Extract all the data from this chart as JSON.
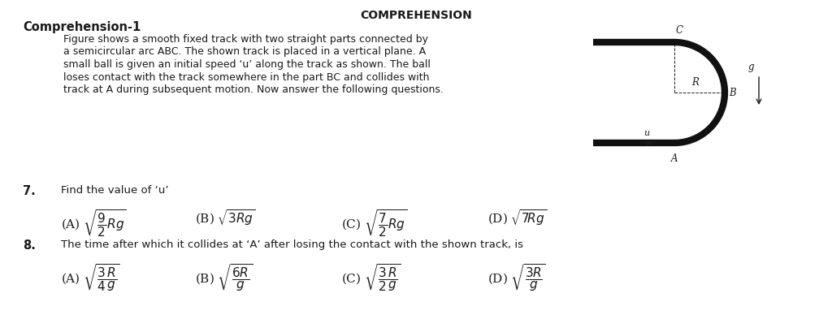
{
  "title": "COMPREHENSION",
  "heading": "Comprehension-1",
  "para_lines": [
    "Figure shows a smooth fixed track with two straight parts connected by",
    "a semicircular arc ABC. The shown track is placed in a vertical plane. A",
    "small ball is given an initial speed ‘u’ along the track as shown. The ball",
    "loses contact with the track somewhere in the part BC and collides with",
    "track at A during subsequent motion. Now answer the following questions."
  ],
  "q7_label": "7.",
  "q7_text": "Find the value of ‘u’",
  "q8_label": "8.",
  "q8_text": "The time after which it collides at ‘A’ after losing the contact with the shown track, is",
  "bg_color": "#ffffff",
  "text_color": "#1a1a1a",
  "track_color": "#111111",
  "title_fontsize": 10,
  "heading_fontsize": 10.5,
  "para_fontsize": 9,
  "q_label_fontsize": 10.5,
  "q_text_fontsize": 9.5,
  "opt_fontsize": 11
}
